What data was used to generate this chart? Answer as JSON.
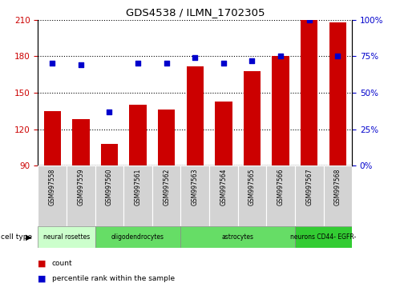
{
  "title": "GDS4538 / ILMN_1702305",
  "samples": [
    "GSM997558",
    "GSM997559",
    "GSM997560",
    "GSM997561",
    "GSM997562",
    "GSM997563",
    "GSM997564",
    "GSM997565",
    "GSM997566",
    "GSM997567",
    "GSM997568"
  ],
  "counts": [
    135,
    128,
    108,
    140,
    136,
    172,
    143,
    168,
    180,
    210,
    208
  ],
  "percentiles": [
    70,
    69,
    37,
    70,
    70,
    74,
    70,
    72,
    75,
    100,
    75
  ],
  "ylim_left": [
    90,
    210
  ],
  "ylim_right": [
    0,
    100
  ],
  "yticks_left": [
    90,
    120,
    150,
    180,
    210
  ],
  "yticks_right": [
    0,
    25,
    50,
    75,
    100
  ],
  "bar_color": "#cc0000",
  "dot_color": "#0000cc",
  "bg_color": "#ffffff",
  "cell_types": [
    {
      "label": "neural rosettes",
      "start": 0,
      "end": 2,
      "color": "#ccffcc"
    },
    {
      "label": "oligodendrocytes",
      "start": 2,
      "end": 5,
      "color": "#66dd66"
    },
    {
      "label": "astrocytes",
      "start": 5,
      "end": 9,
      "color": "#66dd66"
    },
    {
      "label": "neurons CD44- EGFR-",
      "start": 9,
      "end": 11,
      "color": "#33cc33"
    }
  ],
  "ylabel_left_color": "#cc0000",
  "ylabel_right_color": "#0000cc",
  "legend_count_color": "#cc0000",
  "legend_percentile_color": "#0000cc"
}
